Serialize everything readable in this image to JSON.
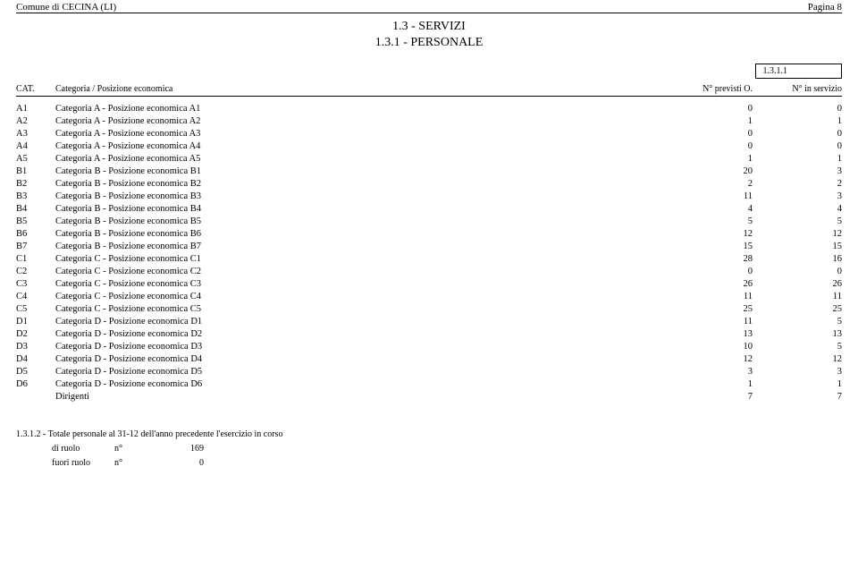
{
  "header": {
    "municipality": "Comune di CECINA (LI)",
    "page_label": "Pagina 8"
  },
  "title": {
    "line1": "1.3 - SERVIZI",
    "line2": "1.3.1 - PERSONALE"
  },
  "ref_box": "1.3.1.1",
  "columns": {
    "cat": "CAT.",
    "desc": "Categoria / Posizione economica",
    "previsti": "N° previsti O.",
    "servizio": "N° in servizio"
  },
  "rows": [
    {
      "cat": "A1",
      "desc": "Categoria A - Posizione economica A1",
      "prev": "0",
      "serv": "0"
    },
    {
      "cat": "A2",
      "desc": "Categoria A - Posizione economica A2",
      "prev": "1",
      "serv": "1"
    },
    {
      "cat": "A3",
      "desc": "Categoria A - Posizione economica A3",
      "prev": "0",
      "serv": "0"
    },
    {
      "cat": "A4",
      "desc": "Categoria A - Posizione economica A4",
      "prev": "0",
      "serv": "0"
    },
    {
      "cat": "A5",
      "desc": "Categoria A - Posizione economica A5",
      "prev": "1",
      "serv": "1"
    },
    {
      "cat": "B1",
      "desc": "Categoria B - Posizione economica B1",
      "prev": "20",
      "serv": "3"
    },
    {
      "cat": "B2",
      "desc": "Categoria B - Posizione economica B2",
      "prev": "2",
      "serv": "2"
    },
    {
      "cat": "B3",
      "desc": "Categoria B - Posizione economica B3",
      "prev": "11",
      "serv": "3"
    },
    {
      "cat": "B4",
      "desc": "Categoria B - Posizione economica B4",
      "prev": "4",
      "serv": "4"
    },
    {
      "cat": "B5",
      "desc": "Categoria B - Posizione economica B5",
      "prev": "5",
      "serv": "5"
    },
    {
      "cat": "B6",
      "desc": "Categoria B - Posizione economica B6",
      "prev": "12",
      "serv": "12"
    },
    {
      "cat": "B7",
      "desc": "Categoria B - Posizione economica B7",
      "prev": "15",
      "serv": "15"
    },
    {
      "cat": "C1",
      "desc": "Categoria C - Posizione economica C1",
      "prev": "28",
      "serv": "16"
    },
    {
      "cat": "C2",
      "desc": "Categoria C - Posizione economica C2",
      "prev": "0",
      "serv": "0"
    },
    {
      "cat": "C3",
      "desc": "Categoria C - Posizione economica C3",
      "prev": "26",
      "serv": "26"
    },
    {
      "cat": "C4",
      "desc": "Categoria C - Posizione economica C4",
      "prev": "11",
      "serv": "11"
    },
    {
      "cat": "C5",
      "desc": "Categoria C - Posizione economica C5",
      "prev": "25",
      "serv": "25"
    },
    {
      "cat": "D1",
      "desc": "Categoria D - Posizione economica D1",
      "prev": "11",
      "serv": "5"
    },
    {
      "cat": "D2",
      "desc": "Categoria D - Posizione economica D2",
      "prev": "13",
      "serv": "13"
    },
    {
      "cat": "D3",
      "desc": "Categoria D - Posizione economica D3",
      "prev": "10",
      "serv": "5"
    },
    {
      "cat": "D4",
      "desc": "Categoria D - Posizione economica D4",
      "prev": "12",
      "serv": "12"
    },
    {
      "cat": "D5",
      "desc": "Categoria D - Posizione economica D5",
      "prev": "3",
      "serv": "3"
    },
    {
      "cat": "D6",
      "desc": "Categoria D - Posizione economica D6",
      "prev": "1",
      "serv": "1"
    },
    {
      "cat": "",
      "desc": "Dirigenti",
      "prev": "7",
      "serv": "7"
    }
  ],
  "footer": {
    "title": "1.3.1.2 - Totale personale al 31-12 dell'anno precedente l'esercizio in corso",
    "lines": [
      {
        "label": "di ruolo",
        "n": "n°",
        "val": "169"
      },
      {
        "label": "fuori ruolo",
        "n": "n°",
        "val": "0"
      }
    ]
  }
}
